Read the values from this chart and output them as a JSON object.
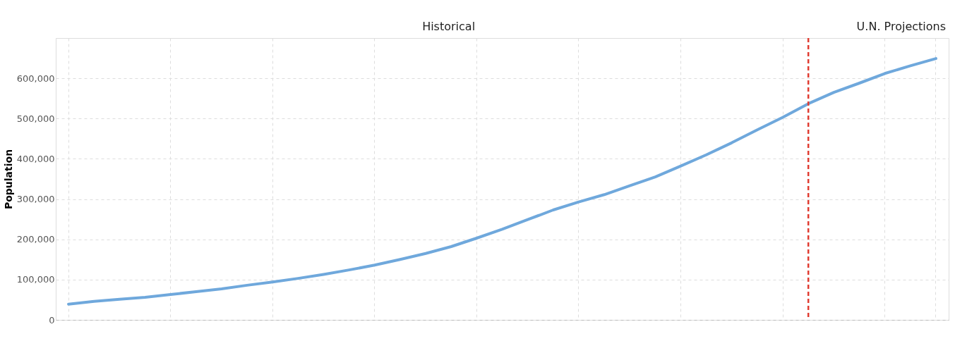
{
  "chart_data": {
    "type": "line",
    "ylabel": "Population",
    "categories": [
      null,
      null,
      null,
      null,
      null,
      null,
      null,
      null,
      null,
      null,
      null,
      null,
      null,
      null,
      null,
      null,
      null,
      null,
      null,
      null,
      null,
      null,
      null,
      null,
      null,
      null,
      null,
      null,
      null,
      null,
      null,
      null,
      null,
      null,
      null
    ],
    "series": [
      {
        "color": "#6fa8dc",
        "values": [
          39000,
          46000,
          51000,
          56000,
          63000,
          70000,
          77000,
          86000,
          94000,
          103000,
          113000,
          124000,
          136000,
          150000,
          165000,
          182000,
          203000,
          225000,
          249000,
          273000,
          293000,
          311000,
          333000,
          355000,
          382000,
          410000,
          440000,
          472000,
          503000,
          537000,
          565000,
          588000,
          612000,
          631000,
          649000
        ]
      }
    ],
    "ylim": [
      0,
      700000
    ],
    "yticks": [
      0,
      {
        "value": 100000,
        "label": "100,000"
      },
      {
        "value": 200000,
        "label": "200,000"
      },
      {
        "value": 300000,
        "label": "300,000"
      },
      {
        "value": 400000,
        "label": "400,000"
      },
      {
        "value": 500000,
        "label": "500,000"
      },
      {
        "value": 600000,
        "label": "600,000"
      },
      {
        "value": 700000,
        "label": null
      }
    ],
    "tick_labels": "y",
    "grid": true,
    "line_style": "solid",
    "marker": "none",
    "annotations": [
      "Historical",
      "U.N. Projections"
    ]
  }
}
